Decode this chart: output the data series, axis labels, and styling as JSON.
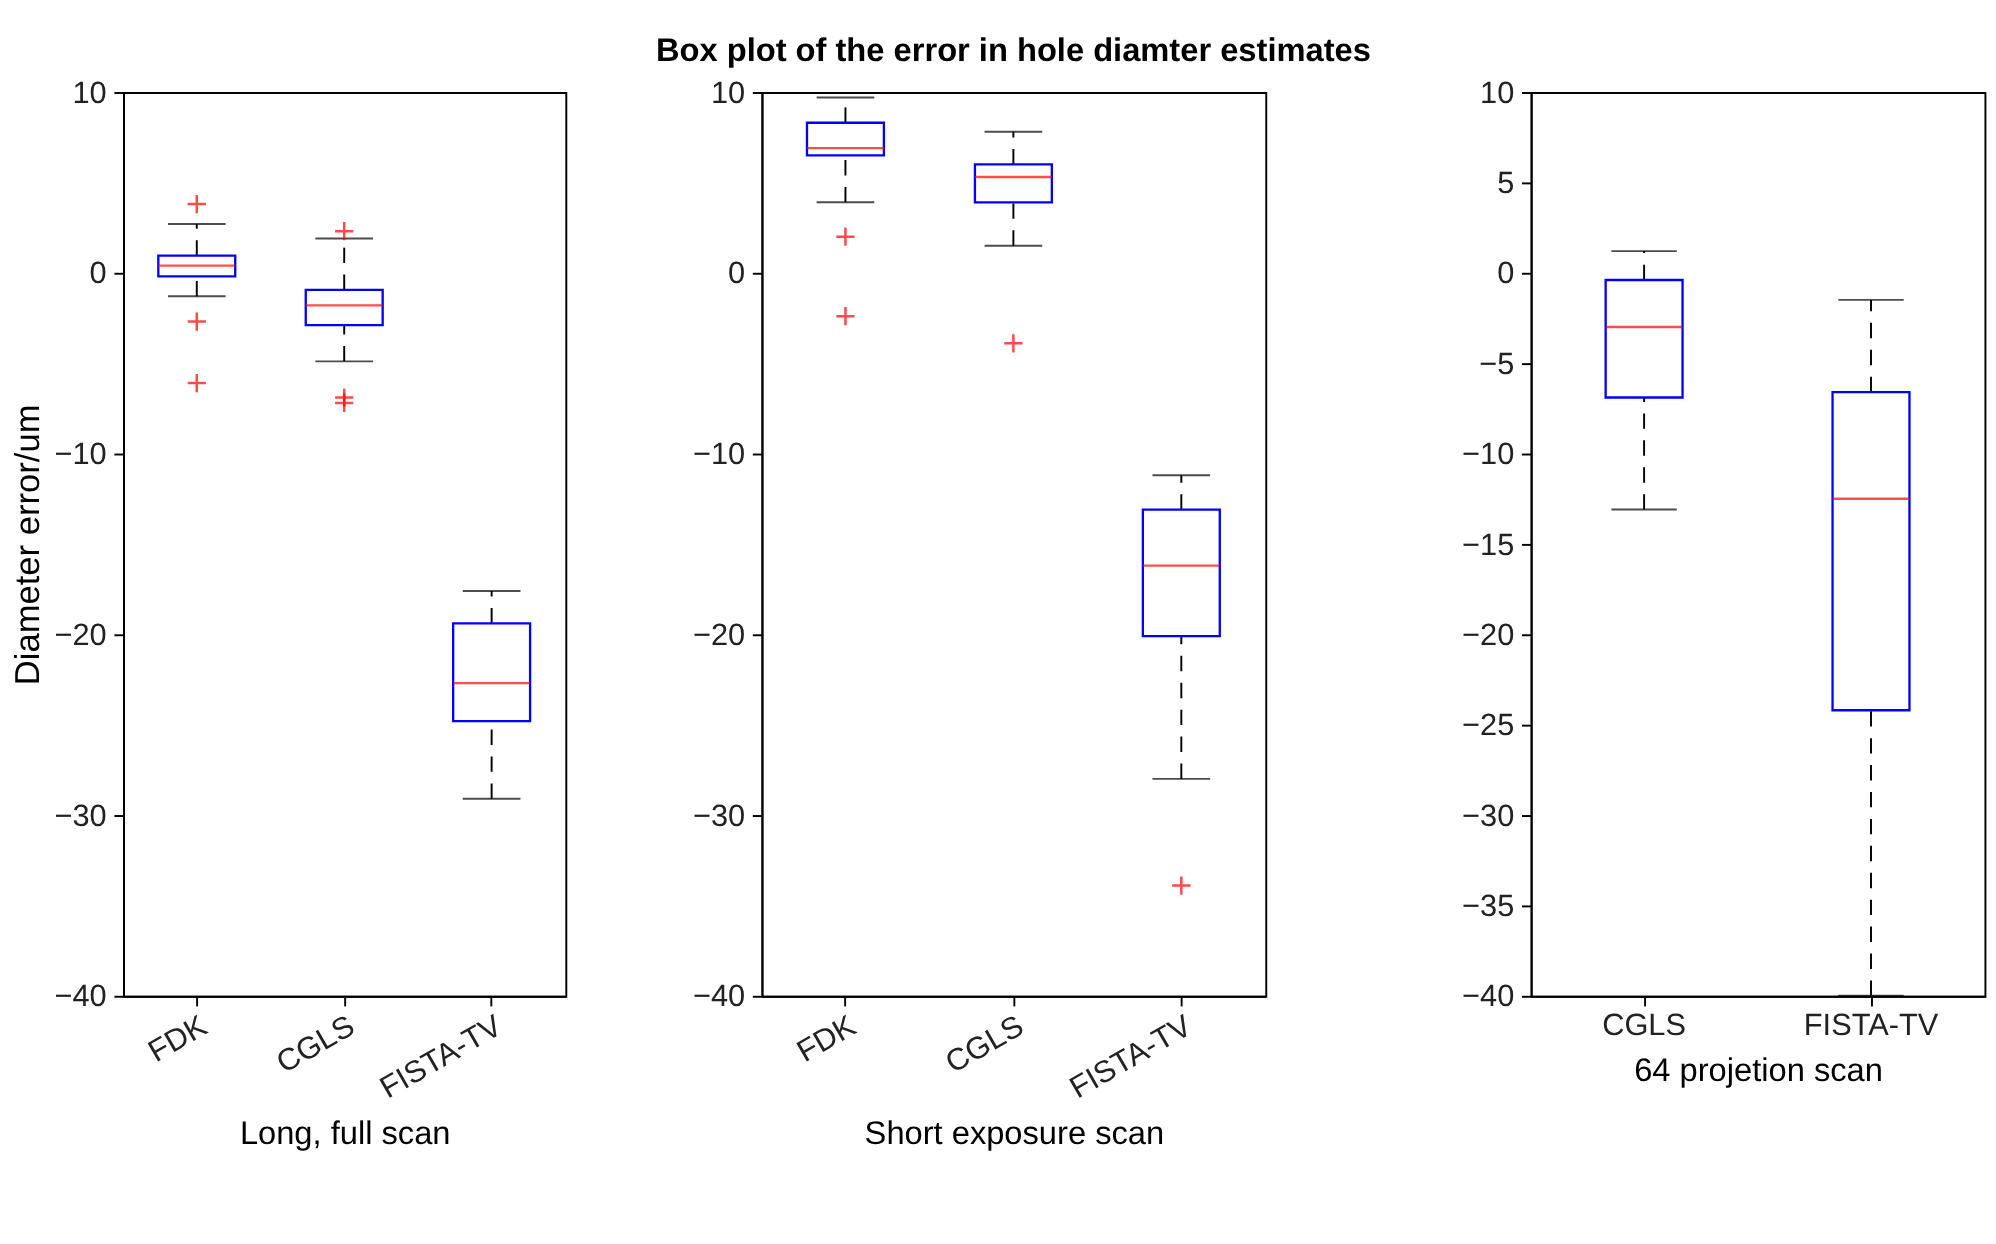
{
  "chart_data": [
    {
      "type": "box",
      "xlabel": "Long, full scan",
      "ylabel": "Diameter error/um",
      "categories": [
        "FDK",
        "CGLS",
        "FISTA-TV"
      ],
      "ylim": [
        -40,
        10
      ],
      "yticks": [
        -40,
        -30,
        -20,
        -10,
        0,
        10
      ],
      "grid": false,
      "line_style": "dashed",
      "series": [
        {
          "color": "#0000ff",
          "boxes": [
            {
              "low": -1.3,
              "q1": -0.2,
              "median": 0.4,
              "q3": 0.95,
              "high": 2.7,
              "outliers": [
                3.8,
                -2.7,
                -6.1
              ]
            },
            {
              "low": -4.9,
              "q1": -2.9,
              "median": -1.8,
              "q3": -0.95,
              "high": 1.9,
              "outliers": [
                2.3,
                -6.9,
                -7.2
              ]
            },
            {
              "low": -29.1,
              "q1": -24.8,
              "median": -22.7,
              "q3": -19.4,
              "high": -17.6
            }
          ]
        }
      ]
    },
    {
      "type": "box",
      "title": "Box plot of the error in hole diamter estimates",
      "xlabel": "Short exposure scan",
      "categories": [
        "FDK",
        "CGLS",
        "FISTA-TV"
      ],
      "ylim": [
        -40,
        10
      ],
      "yticks": [
        -40,
        -30,
        -20,
        -10,
        0,
        10
      ],
      "grid": false,
      "line_style": "dashed",
      "series": [
        {
          "color": "#0000ff",
          "boxes": [
            {
              "low": 3.9,
              "q1": 6.5,
              "median": 6.9,
              "q3": 8.3,
              "high": 9.7,
              "outliers": [
                2.0,
                -2.4
              ]
            },
            {
              "low": 1.5,
              "q1": 3.9,
              "median": 5.3,
              "q3": 6.0,
              "high": 7.8,
              "outliers": [
                -3.9
              ]
            },
            {
              "low": -28.0,
              "q1": -20.1,
              "median": -16.2,
              "q3": -13.1,
              "high": -11.2,
              "outliers": [
                -33.9
              ]
            }
          ]
        }
      ]
    },
    {
      "type": "box",
      "xlabel": "64 projetion scan",
      "categories": [
        "CGLS",
        "FISTA-TV"
      ],
      "ylim": [
        -40,
        10
      ],
      "yticks": [
        -40,
        -35,
        -30,
        -25,
        -20,
        -15,
        -10,
        -5,
        0,
        5,
        10
      ],
      "grid": false,
      "line_style": "dashed",
      "series": [
        {
          "color": "#0000ff",
          "boxes": [
            {
              "low": -13.1,
              "q1": -6.9,
              "median": -3.0,
              "q3": -0.4,
              "high": 1.2
            },
            {
              "low": -40,
              "q1": -24.2,
              "median": -12.5,
              "q3": -6.6,
              "high": -1.5
            }
          ]
        }
      ]
    }
  ]
}
